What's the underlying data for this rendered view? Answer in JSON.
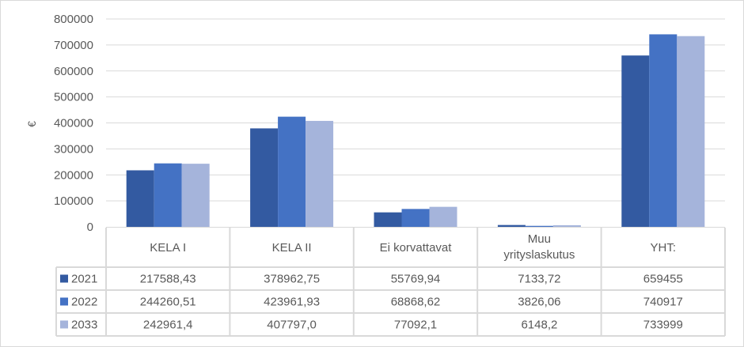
{
  "chart_data": {
    "type": "bar",
    "ylabel": "€",
    "ylim": [
      0,
      800000
    ],
    "yticks": [
      "0",
      "100000",
      "200000",
      "300000",
      "400000",
      "500000",
      "600000",
      "700000",
      "800000"
    ],
    "grid": true,
    "legend": "data-table",
    "categories": [
      "KELA I",
      "KELA II",
      "Ei korvattavat",
      "Muu yrityslaskutus",
      "YHT:"
    ],
    "series": [
      {
        "name": "2021",
        "color": "#335aa1",
        "values": [
          217588.43,
          378962.75,
          55769.94,
          7133.72,
          659455
        ],
        "labels": [
          "217588,43",
          "378962,75",
          "55769,94",
          "7133,72",
          "659455"
        ]
      },
      {
        "name": "2022",
        "color": "#4472c4",
        "values": [
          244260.51,
          423961.93,
          68868.62,
          3826.06,
          740917
        ],
        "labels": [
          "244260,51",
          "423961,93",
          "68868,62",
          "3826,06",
          "740917"
        ]
      },
      {
        "name": "2033",
        "color": "#a5b4db",
        "values": [
          242961.4,
          407797.0,
          77092.1,
          6148.2,
          733999
        ],
        "labels": [
          "242961,4",
          "407797,0",
          "77092,1",
          "6148,2",
          "733999"
        ]
      }
    ]
  }
}
